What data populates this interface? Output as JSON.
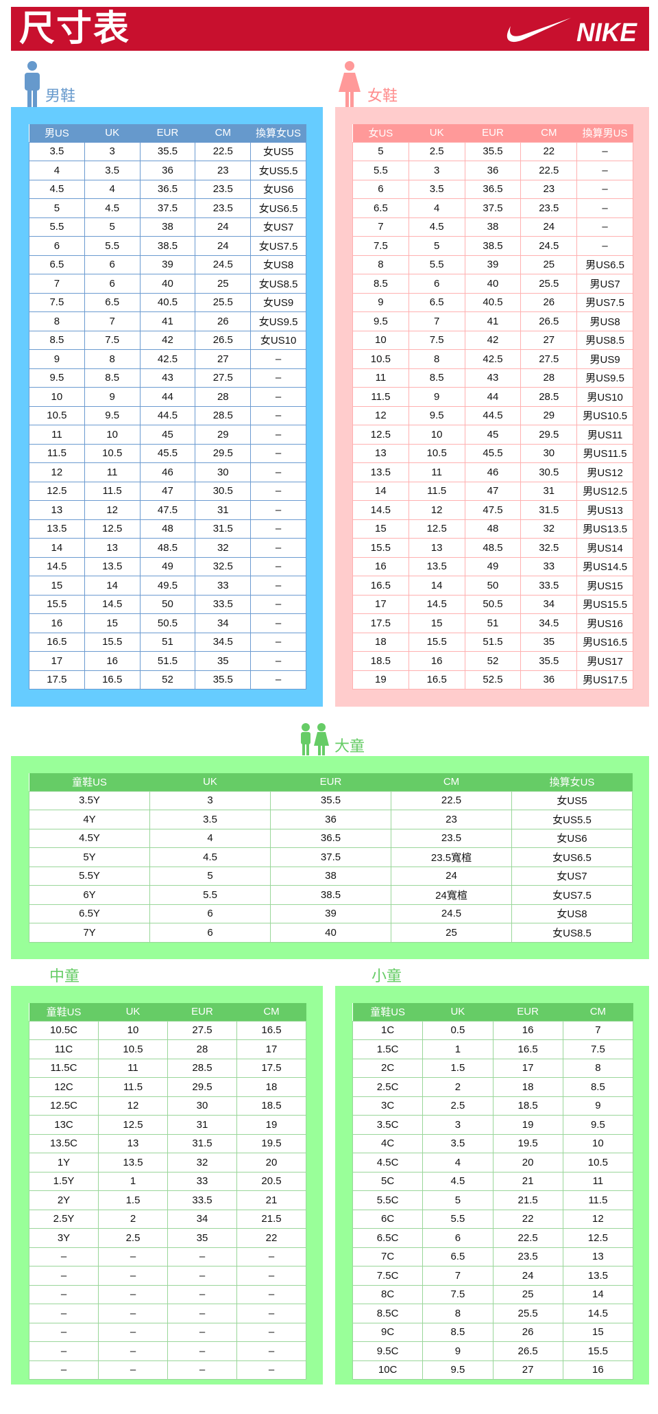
{
  "header": {
    "title": "尺寸表",
    "brand": "NIKE",
    "brand_color": "#c8102e"
  },
  "men": {
    "title": "男鞋",
    "color": "#6699cc",
    "panel_color": "#66ccff",
    "columns": [
      "男US",
      "UK",
      "EUR",
      "CM",
      "換算女US"
    ],
    "rows": [
      [
        "3.5",
        "3",
        "35.5",
        "22.5",
        "女US5"
      ],
      [
        "4",
        "3.5",
        "36",
        "23",
        "女US5.5"
      ],
      [
        "4.5",
        "4",
        "36.5",
        "23.5",
        "女US6"
      ],
      [
        "5",
        "4.5",
        "37.5",
        "23.5",
        "女US6.5"
      ],
      [
        "5.5",
        "5",
        "38",
        "24",
        "女US7"
      ],
      [
        "6",
        "5.5",
        "38.5",
        "24",
        "女US7.5"
      ],
      [
        "6.5",
        "6",
        "39",
        "24.5",
        "女US8"
      ],
      [
        "7",
        "6",
        "40",
        "25",
        "女US8.5"
      ],
      [
        "7.5",
        "6.5",
        "40.5",
        "25.5",
        "女US9"
      ],
      [
        "8",
        "7",
        "41",
        "26",
        "女US9.5"
      ],
      [
        "8.5",
        "7.5",
        "42",
        "26.5",
        "女US10"
      ],
      [
        "9",
        "8",
        "42.5",
        "27",
        "–"
      ],
      [
        "9.5",
        "8.5",
        "43",
        "27.5",
        "–"
      ],
      [
        "10",
        "9",
        "44",
        "28",
        "–"
      ],
      [
        "10.5",
        "9.5",
        "44.5",
        "28.5",
        "–"
      ],
      [
        "11",
        "10",
        "45",
        "29",
        "–"
      ],
      [
        "11.5",
        "10.5",
        "45.5",
        "29.5",
        "–"
      ],
      [
        "12",
        "11",
        "46",
        "30",
        "–"
      ],
      [
        "12.5",
        "11.5",
        "47",
        "30.5",
        "–"
      ],
      [
        "13",
        "12",
        "47.5",
        "31",
        "–"
      ],
      [
        "13.5",
        "12.5",
        "48",
        "31.5",
        "–"
      ],
      [
        "14",
        "13",
        "48.5",
        "32",
        "–"
      ],
      [
        "14.5",
        "13.5",
        "49",
        "32.5",
        "–"
      ],
      [
        "15",
        "14",
        "49.5",
        "33",
        "–"
      ],
      [
        "15.5",
        "14.5",
        "50",
        "33.5",
        "–"
      ],
      [
        "16",
        "15",
        "50.5",
        "34",
        "–"
      ],
      [
        "16.5",
        "15.5",
        "51",
        "34.5",
        "–"
      ],
      [
        "17",
        "16",
        "51.5",
        "35",
        "–"
      ],
      [
        "17.5",
        "16.5",
        "52",
        "35.5",
        "–"
      ]
    ]
  },
  "women": {
    "title": "女鞋",
    "color": "#ff8c8c",
    "panel_color": "#ffcccc",
    "columns": [
      "女US",
      "UK",
      "EUR",
      "CM",
      "換算男US"
    ],
    "rows": [
      [
        "5",
        "2.5",
        "35.5",
        "22",
        "–"
      ],
      [
        "5.5",
        "3",
        "36",
        "22.5",
        "–"
      ],
      [
        "6",
        "3.5",
        "36.5",
        "23",
        "–"
      ],
      [
        "6.5",
        "4",
        "37.5",
        "23.5",
        "–"
      ],
      [
        "7",
        "4.5",
        "38",
        "24",
        "–"
      ],
      [
        "7.5",
        "5",
        "38.5",
        "24.5",
        "–"
      ],
      [
        "8",
        "5.5",
        "39",
        "25",
        "男US6.5"
      ],
      [
        "8.5",
        "6",
        "40",
        "25.5",
        "男US7"
      ],
      [
        "9",
        "6.5",
        "40.5",
        "26",
        "男US7.5"
      ],
      [
        "9.5",
        "7",
        "41",
        "26.5",
        "男US8"
      ],
      [
        "10",
        "7.5",
        "42",
        "27",
        "男US8.5"
      ],
      [
        "10.5",
        "8",
        "42.5",
        "27.5",
        "男US9"
      ],
      [
        "11",
        "8.5",
        "43",
        "28",
        "男US9.5"
      ],
      [
        "11.5",
        "9",
        "44",
        "28.5",
        "男US10"
      ],
      [
        "12",
        "9.5",
        "44.5",
        "29",
        "男US10.5"
      ],
      [
        "12.5",
        "10",
        "45",
        "29.5",
        "男US11"
      ],
      [
        "13",
        "10.5",
        "45.5",
        "30",
        "男US11.5"
      ],
      [
        "13.5",
        "11",
        "46",
        "30.5",
        "男US12"
      ],
      [
        "14",
        "11.5",
        "47",
        "31",
        "男US12.5"
      ],
      [
        "14.5",
        "12",
        "47.5",
        "31.5",
        "男US13"
      ],
      [
        "15",
        "12.5",
        "48",
        "32",
        "男US13.5"
      ],
      [
        "15.5",
        "13",
        "48.5",
        "32.5",
        "男US14"
      ],
      [
        "16",
        "13.5",
        "49",
        "33",
        "男US14.5"
      ],
      [
        "16.5",
        "14",
        "50",
        "33.5",
        "男US15"
      ],
      [
        "17",
        "14.5",
        "50.5",
        "34",
        "男US15.5"
      ],
      [
        "17.5",
        "15",
        "51",
        "34.5",
        "男US16"
      ],
      [
        "18",
        "15.5",
        "51.5",
        "35",
        "男US16.5"
      ],
      [
        "18.5",
        "16",
        "52",
        "35.5",
        "男US17"
      ],
      [
        "19",
        "16.5",
        "52.5",
        "36",
        "男US17.5"
      ]
    ]
  },
  "big_kids": {
    "title": "大童",
    "color": "#66cc66",
    "panel_color": "#99ff99",
    "columns": [
      "童鞋US",
      "UK",
      "EUR",
      "CM",
      "換算女US"
    ],
    "rows": [
      [
        "3.5Y",
        "3",
        "35.5",
        "22.5",
        "女US5"
      ],
      [
        "4Y",
        "3.5",
        "36",
        "23",
        "女US5.5"
      ],
      [
        "4.5Y",
        "4",
        "36.5",
        "23.5",
        "女US6"
      ],
      [
        "5Y",
        "4.5",
        "37.5",
        "23.5寬楦",
        "女US6.5"
      ],
      [
        "5.5Y",
        "5",
        "38",
        "24",
        "女US7"
      ],
      [
        "6Y",
        "5.5",
        "38.5",
        "24寬楦",
        "女US7.5"
      ],
      [
        "6.5Y",
        "6",
        "39",
        "24.5",
        "女US8"
      ],
      [
        "7Y",
        "6",
        "40",
        "25",
        "女US8.5"
      ]
    ]
  },
  "mid_kids": {
    "title": "中童",
    "columns": [
      "童鞋US",
      "UK",
      "EUR",
      "CM"
    ],
    "rows": [
      [
        "10.5C",
        "10",
        "27.5",
        "16.5"
      ],
      [
        "11C",
        "10.5",
        "28",
        "17"
      ],
      [
        "11.5C",
        "11",
        "28.5",
        "17.5"
      ],
      [
        "12C",
        "11.5",
        "29.5",
        "18"
      ],
      [
        "12.5C",
        "12",
        "30",
        "18.5"
      ],
      [
        "13C",
        "12.5",
        "31",
        "19"
      ],
      [
        "13.5C",
        "13",
        "31.5",
        "19.5"
      ],
      [
        "1Y",
        "13.5",
        "32",
        "20"
      ],
      [
        "1.5Y",
        "1",
        "33",
        "20.5"
      ],
      [
        "2Y",
        "1.5",
        "33.5",
        "21"
      ],
      [
        "2.5Y",
        "2",
        "34",
        "21.5"
      ],
      [
        "3Y",
        "2.5",
        "35",
        "22"
      ],
      [
        "–",
        "–",
        "–",
        "–"
      ],
      [
        "–",
        "–",
        "–",
        "–"
      ],
      [
        "–",
        "–",
        "–",
        "–"
      ],
      [
        "–",
        "–",
        "–",
        "–"
      ],
      [
        "–",
        "–",
        "–",
        "–"
      ],
      [
        "–",
        "–",
        "–",
        "–"
      ],
      [
        "–",
        "–",
        "–",
        "–"
      ]
    ]
  },
  "small_kids": {
    "title": "小童",
    "columns": [
      "童鞋US",
      "UK",
      "EUR",
      "CM"
    ],
    "rows": [
      [
        "1C",
        "0.5",
        "16",
        "7"
      ],
      [
        "1.5C",
        "1",
        "16.5",
        "7.5"
      ],
      [
        "2C",
        "1.5",
        "17",
        "8"
      ],
      [
        "2.5C",
        "2",
        "18",
        "8.5"
      ],
      [
        "3C",
        "2.5",
        "18.5",
        "9"
      ],
      [
        "3.5C",
        "3",
        "19",
        "9.5"
      ],
      [
        "4C",
        "3.5",
        "19.5",
        "10"
      ],
      [
        "4.5C",
        "4",
        "20",
        "10.5"
      ],
      [
        "5C",
        "4.5",
        "21",
        "11"
      ],
      [
        "5.5C",
        "5",
        "21.5",
        "11.5"
      ],
      [
        "6C",
        "5.5",
        "22",
        "12"
      ],
      [
        "6.5C",
        "6",
        "22.5",
        "12.5"
      ],
      [
        "7C",
        "6.5",
        "23.5",
        "13"
      ],
      [
        "7.5C",
        "7",
        "24",
        "13.5"
      ],
      [
        "8C",
        "7.5",
        "25",
        "14"
      ],
      [
        "8.5C",
        "8",
        "25.5",
        "14.5"
      ],
      [
        "9C",
        "8.5",
        "26",
        "15"
      ],
      [
        "9.5C",
        "9",
        "26.5",
        "15.5"
      ],
      [
        "10C",
        "9.5",
        "27",
        "16"
      ]
    ]
  }
}
